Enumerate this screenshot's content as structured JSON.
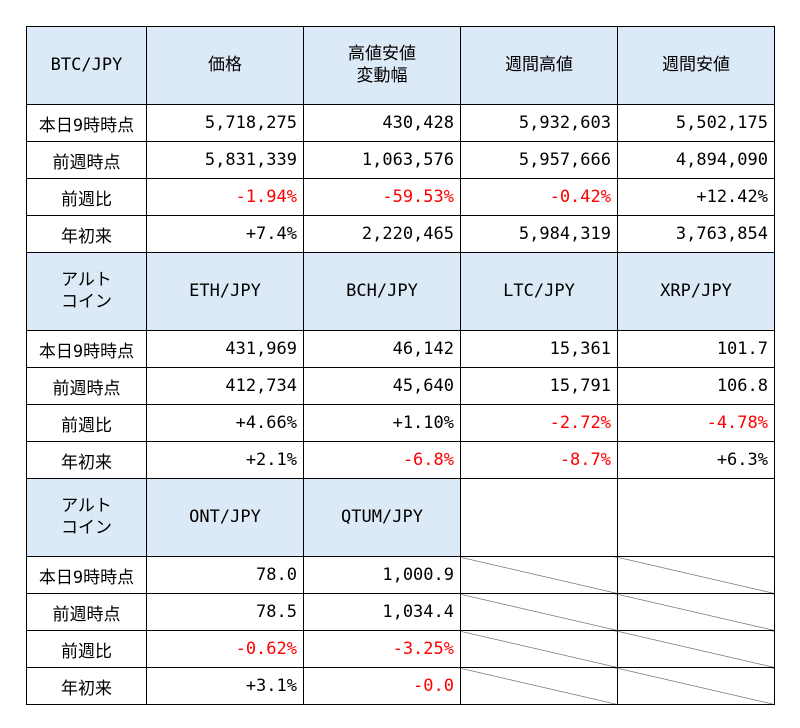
{
  "sections": [
    {
      "header": [
        "BTC/JPY",
        "価格",
        "高値安値\n変動幅",
        "週間高値",
        "週間安値"
      ],
      "rows": [
        {
          "label": "本日9時時点",
          "cells": [
            {
              "v": "5,718,275"
            },
            {
              "v": "430,428"
            },
            {
              "v": "5,932,603"
            },
            {
              "v": "5,502,175"
            }
          ]
        },
        {
          "label": "前週時点",
          "cells": [
            {
              "v": "5,831,339"
            },
            {
              "v": "1,063,576"
            },
            {
              "v": "5,957,666"
            },
            {
              "v": "4,894,090"
            }
          ]
        },
        {
          "label": "前週比",
          "cells": [
            {
              "v": "-1.94%",
              "neg": true
            },
            {
              "v": "-59.53%",
              "neg": true
            },
            {
              "v": "-0.42%",
              "neg": true
            },
            {
              "v": "+12.42%"
            }
          ]
        },
        {
          "label": "年初来",
          "cells": [
            {
              "v": "+7.4%"
            },
            {
              "v": "2,220,465"
            },
            {
              "v": "5,984,319"
            },
            {
              "v": "3,763,854"
            }
          ]
        }
      ]
    },
    {
      "header": [
        "アルト\nコイン",
        "ETH/JPY",
        "BCH/JPY",
        "LTC/JPY",
        "XRP/JPY"
      ],
      "rows": [
        {
          "label": "本日9時時点",
          "cells": [
            {
              "v": "431,969"
            },
            {
              "v": "46,142"
            },
            {
              "v": "15,361"
            },
            {
              "v": "101.7"
            }
          ]
        },
        {
          "label": "前週時点",
          "cells": [
            {
              "v": "412,734"
            },
            {
              "v": "45,640"
            },
            {
              "v": "15,791"
            },
            {
              "v": "106.8"
            }
          ]
        },
        {
          "label": "前週比",
          "cells": [
            {
              "v": "+4.66%"
            },
            {
              "v": "+1.10%"
            },
            {
              "v": "-2.72%",
              "neg": true
            },
            {
              "v": "-4.78%",
              "neg": true
            }
          ]
        },
        {
          "label": "年初来",
          "cells": [
            {
              "v": "+2.1%"
            },
            {
              "v": "-6.8%",
              "neg": true
            },
            {
              "v": "-8.7%",
              "neg": true
            },
            {
              "v": "+6.3%"
            }
          ]
        }
      ]
    },
    {
      "header": [
        "アルト\nコイン",
        "ONT/JPY",
        "QTUM/JPY",
        "",
        ""
      ],
      "rows": [
        {
          "label": "本日9時時点",
          "cells": [
            {
              "v": "78.0"
            },
            {
              "v": "1,000.9"
            },
            {
              "v": "",
              "na": true
            },
            {
              "v": "",
              "na": true
            }
          ]
        },
        {
          "label": "前週時点",
          "cells": [
            {
              "v": "78.5"
            },
            {
              "v": "1,034.4"
            },
            {
              "v": "",
              "na": true
            },
            {
              "v": "",
              "na": true
            }
          ]
        },
        {
          "label": "前週比",
          "cells": [
            {
              "v": "-0.62%",
              "neg": true
            },
            {
              "v": "-3.25%",
              "neg": true
            },
            {
              "v": "",
              "na": true
            },
            {
              "v": "",
              "na": true
            }
          ]
        },
        {
          "label": "年初来",
          "cells": [
            {
              "v": "+3.1%"
            },
            {
              "v": "-0.0",
              "neg": true
            },
            {
              "v": "",
              "na": true
            },
            {
              "v": "",
              "na": true
            }
          ]
        }
      ]
    }
  ],
  "colors": {
    "header_bg": "#dce9f6",
    "negative": "#ff0000",
    "border": "#000000"
  }
}
